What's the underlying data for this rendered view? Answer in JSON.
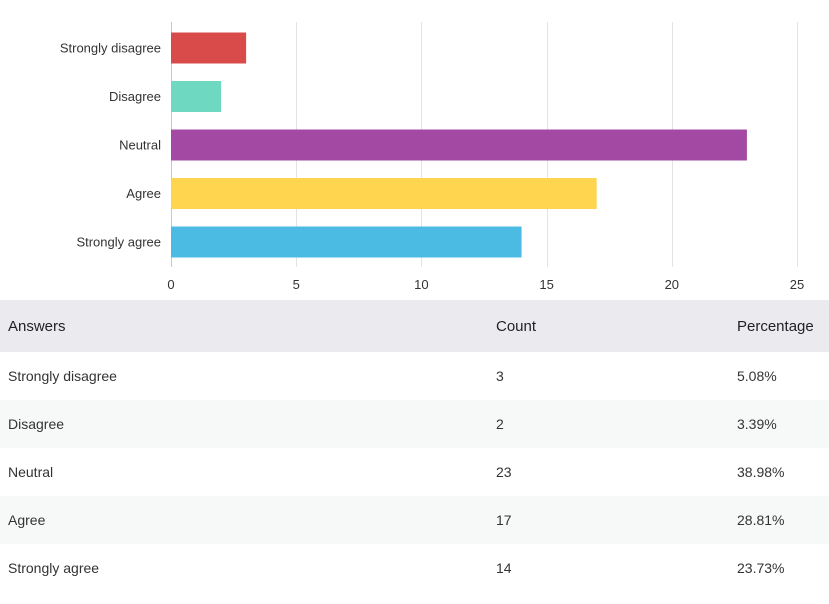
{
  "chart_data": {
    "type": "bar",
    "orientation": "horizontal",
    "categories": [
      "Strongly disagree",
      "Disagree",
      "Neutral",
      "Agree",
      "Strongly agree"
    ],
    "values": [
      3,
      2,
      23,
      17,
      14
    ],
    "colors": [
      "#d94b4b",
      "#6ed9c0",
      "#a349a4",
      "#ffd54f",
      "#4cbbe3"
    ],
    "xlim": [
      0,
      25
    ],
    "xticks": [
      0,
      5,
      10,
      15,
      20,
      25
    ],
    "grid": true,
    "title": "",
    "xlabel": "",
    "ylabel": ""
  },
  "table": {
    "headers": {
      "answers": "Answers",
      "count": "Count",
      "percentage": "Percentage"
    },
    "rows": [
      {
        "answer": "Strongly disagree",
        "count": "3",
        "percentage": "5.08%"
      },
      {
        "answer": "Disagree",
        "count": "2",
        "percentage": "3.39%"
      },
      {
        "answer": "Neutral",
        "count": "23",
        "percentage": "38.98%"
      },
      {
        "answer": "Agree",
        "count": "17",
        "percentage": "28.81%"
      },
      {
        "answer": "Strongly agree",
        "count": "14",
        "percentage": "23.73%"
      }
    ]
  }
}
